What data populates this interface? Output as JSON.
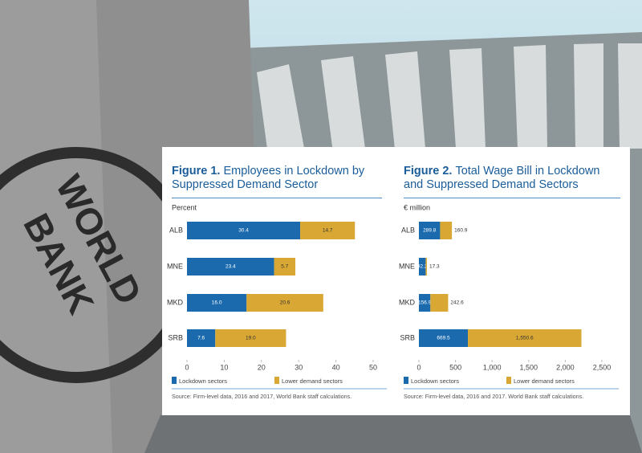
{
  "background": {
    "logo_line_1": "WORLD",
    "logo_line_2": "BANK"
  },
  "chart_data": [
    {
      "type": "bar",
      "stacked": true,
      "orientation": "horizontal",
      "title_label": "Figure 1.",
      "title": "Employees in Lockdown by Suppressed Demand Sector",
      "unit_label": "Percent",
      "categories": [
        "ALB",
        "MNE",
        "MKD",
        "SRB"
      ],
      "series": [
        {
          "name": "Lockdown sectors",
          "color": "#1a6aad",
          "values": [
            30.4,
            23.4,
            16.0,
            7.6
          ],
          "value_labels": [
            "30.4",
            "23.4",
            "16.0",
            "7.6"
          ]
        },
        {
          "name": "Lower demand sectors",
          "color": "#d9a733",
          "values": [
            14.7,
            5.7,
            20.6,
            19.0
          ],
          "value_labels": [
            "14.7",
            "5.7",
            "20.6",
            "19.0"
          ]
        }
      ],
      "xlim": [
        0,
        50
      ],
      "xticks": [
        0,
        10,
        20,
        30,
        40,
        50
      ],
      "source": "Source: Firm-level data, 2016 and 2017, World Bank staff calculations."
    },
    {
      "type": "bar",
      "stacked": true,
      "orientation": "horizontal",
      "title_label": "Figure 2.",
      "title": "Total Wage Bill in Lockdown and Suppressed Demand Sectors",
      "unit_label": "€ million",
      "categories": [
        "ALB",
        "MNE",
        "MKD",
        "SRB"
      ],
      "series": [
        {
          "name": "Lockdown sectors",
          "color": "#1a6aad",
          "values": [
            289.8,
            92.2,
            156.9,
            669.5
          ],
          "value_labels": [
            "289.8",
            "92.2",
            "156.9",
            "669.5"
          ]
        },
        {
          "name": "Lower demand sectors",
          "color": "#d9a733",
          "values": [
            160.9,
            17.3,
            242.6,
            1550.6
          ],
          "value_labels": [
            "160.9",
            "17.3",
            "242.6",
            "1,550.6"
          ]
        }
      ],
      "xlim": [
        0,
        2500
      ],
      "xticks": [
        0,
        500,
        {
          "value": 1000,
          "label": "1,000"
        },
        {
          "value": 1500,
          "label": "1,500"
        },
        {
          "value": 2000,
          "label": "2,000"
        },
        {
          "value": 2500,
          "label": "2,500"
        }
      ],
      "source": "Source: Firm-level data, 2016 and 2017. World Bank staff calculations."
    }
  ]
}
